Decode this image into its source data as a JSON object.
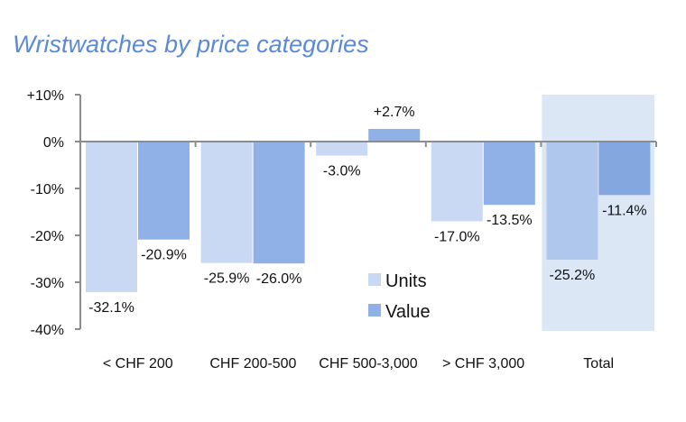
{
  "chart_data": {
    "type": "bar",
    "title": "Wristwatches by price categories",
    "xlabel": "",
    "ylabel": "",
    "ylim": [
      -40,
      10
    ],
    "yticks": [
      10,
      0,
      -10,
      -20,
      -30,
      -40
    ],
    "ytick_labels": [
      "+10%",
      "0%",
      "-10%",
      "-20%",
      "-30%",
      "-40%"
    ],
    "categories": [
      "< CHF 200",
      "CHF 200-500",
      "CHF 500-3,000",
      "> CHF 3,000",
      "Total"
    ],
    "series": [
      {
        "name": "Units",
        "color": "#c9d9f4",
        "values": [
          -32.1,
          -25.9,
          -3.0,
          -17.0,
          -25.2
        ],
        "labels": [
          "-32.1%",
          "-25.9%",
          "-3.0%",
          "-17.0%",
          "-25.2%"
        ]
      },
      {
        "name": "Value",
        "color": "#90b1e7",
        "values": [
          -20.9,
          -26.0,
          2.7,
          -13.5,
          -11.4
        ],
        "labels": [
          "-20.9%",
          "-26.0%",
          "+2.7%",
          "-13.5%",
          "-11.4%"
        ]
      }
    ],
    "highlighted_category": "Total",
    "highlight_color": "#dce7f5",
    "legend_position": "center",
    "grid": false
  }
}
